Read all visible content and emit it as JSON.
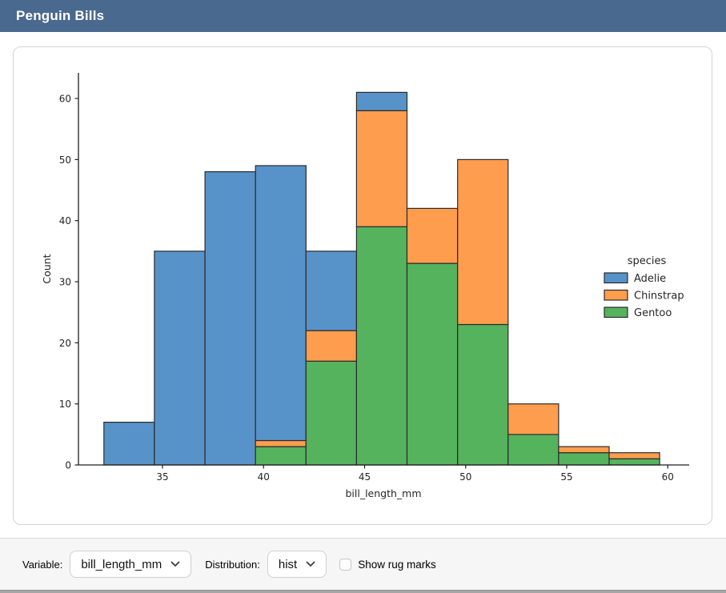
{
  "header": {
    "title": "Penguin Bills",
    "bg_color": "#4a698f"
  },
  "controls": {
    "variable_label": "Variable:",
    "variable_value": "bill_length_mm",
    "distribution_label": "Distribution:",
    "distribution_value": "hist",
    "rug_label": "Show rug marks",
    "rug_checked": false
  },
  "chart_data": {
    "type": "bar",
    "subtype": "stacked-histogram",
    "title": "",
    "xlabel": "bill_length_mm",
    "ylabel": "Count",
    "bin_edges": [
      32.1,
      34.6,
      37.1,
      39.6,
      42.1,
      44.6,
      47.1,
      49.6,
      52.1,
      54.6,
      57.1,
      59.6
    ],
    "series": [
      {
        "name": "Adelie",
        "color": "#5793c8",
        "values": [
          7,
          35,
          48,
          45,
          13,
          3,
          0,
          0,
          0,
          0,
          0
        ]
      },
      {
        "name": "Chinstrap",
        "color": "#ff9d4e",
        "values": [
          0,
          0,
          0,
          1,
          5,
          19,
          9,
          27,
          5,
          1,
          1
        ]
      },
      {
        "name": "Gentoo",
        "color": "#55b35e",
        "values": [
          0,
          0,
          0,
          3,
          17,
          39,
          33,
          23,
          5,
          2,
          1
        ]
      }
    ],
    "stack_order_bottom_to_top": [
      "Gentoo",
      "Chinstrap",
      "Adelie"
    ],
    "bin_totals": [
      7,
      35,
      48,
      49,
      35,
      61,
      42,
      50,
      10,
      3,
      2
    ],
    "x_ticks": [
      35,
      40,
      45,
      50,
      55,
      60
    ],
    "y_ticks": [
      0,
      10,
      20,
      30,
      40,
      50,
      60
    ],
    "xlim": [
      30.84,
      61.06
    ],
    "ylim": [
      0,
      64.2
    ],
    "grid": false,
    "legend": {
      "title": "species",
      "entries": [
        "Adelie",
        "Chinstrap",
        "Gentoo"
      ],
      "position": "center right",
      "frame": false
    },
    "edge_color": "#2b2b2b",
    "axis_color": "#1f1f1f"
  }
}
